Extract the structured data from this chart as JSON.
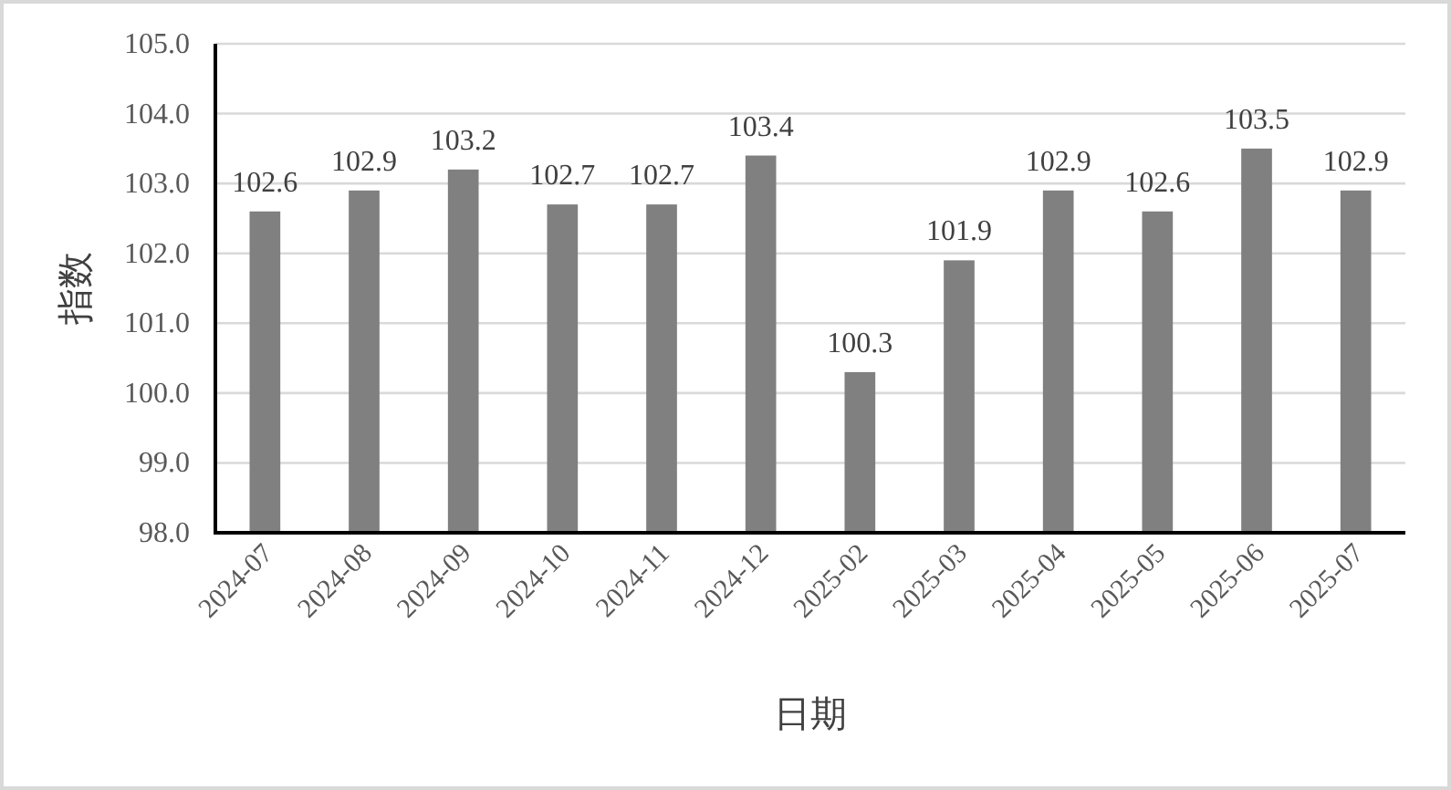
{
  "chart_data": {
    "type": "bar",
    "xlabel": "日期",
    "ylabel": "指数",
    "categories": [
      "2024-07",
      "2024-08",
      "2024-09",
      "2024-10",
      "2024-11",
      "2024-12",
      "2025-02",
      "2025-03",
      "2025-04",
      "2025-05",
      "2025-06",
      "2025-07"
    ],
    "values": [
      102.6,
      102.9,
      103.2,
      102.7,
      102.7,
      103.4,
      100.3,
      101.9,
      102.9,
      102.6,
      103.5,
      102.9
    ],
    "color": "#808080",
    "ylim": [
      98,
      105
    ],
    "yticks": [
      {
        "value": 98,
        "label": "98.0"
      },
      {
        "value": 99,
        "label": "99.0"
      },
      {
        "value": 100,
        "label": "100.0"
      },
      {
        "value": 101,
        "label": "101.0"
      },
      {
        "value": 102,
        "label": "102.0"
      },
      {
        "value": 103,
        "label": "103.0"
      },
      {
        "value": 104,
        "label": "104.0"
      },
      {
        "value": 105,
        "label": "105.0"
      }
    ],
    "grid": "y",
    "data_labels": true
  }
}
